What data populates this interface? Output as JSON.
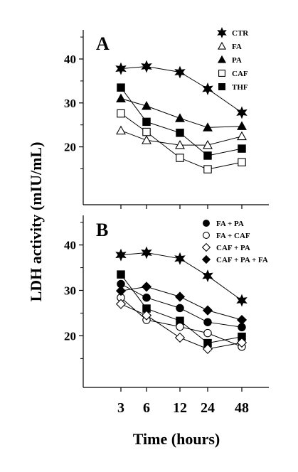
{
  "figure": {
    "ylabel": "LDH activity (mIU/mL)",
    "xlabel": "Time (hours)"
  },
  "chart_data": [
    {
      "type": "line",
      "panel_label": "A",
      "x": [
        3,
        6,
        12,
        24,
        48
      ],
      "x_tick_labels": [
        "3",
        "6",
        "12",
        "24",
        "48"
      ],
      "y_ticks": [
        20,
        30,
        40
      ],
      "ylim": [
        10,
        45
      ],
      "legend_position": "top-right",
      "series": [
        {
          "name": "CTR",
          "marker": "star-filled",
          "values": [
            37.8,
            38.3,
            37.0,
            33.2,
            27.8
          ]
        },
        {
          "name": "FA",
          "marker": "triangle-open",
          "values": [
            23.7,
            21.5,
            20.4,
            20.4,
            22.4
          ]
        },
        {
          "name": "PA",
          "marker": "triangle-filled",
          "values": [
            31.0,
            29.3,
            26.5,
            24.4,
            24.7
          ]
        },
        {
          "name": "CAF",
          "marker": "square-open",
          "values": [
            27.6,
            23.4,
            17.5,
            14.9,
            16.5
          ]
        },
        {
          "name": "THF",
          "marker": "square-filled",
          "values": [
            33.5,
            25.7,
            23.2,
            18.0,
            19.6
          ]
        }
      ]
    },
    {
      "type": "line",
      "panel_label": "B",
      "x": [
        3,
        6,
        12,
        24,
        48
      ],
      "x_tick_labels": [
        "3",
        "6",
        "12",
        "24",
        "48"
      ],
      "y_ticks": [
        20,
        30,
        40
      ],
      "ylim": [
        10,
        45
      ],
      "legend_position": "top-right",
      "series": [
        {
          "name": "CTR",
          "legend": false,
          "marker": "star-filled",
          "values": [
            37.8,
            38.3,
            37.0,
            33.2,
            27.8
          ]
        },
        {
          "name": "THF",
          "legend": false,
          "marker": "square-filled",
          "values": [
            33.5,
            26.0,
            23.3,
            18.4,
            19.8
          ]
        },
        {
          "name": "FA + PA",
          "marker": "circle-filled",
          "values": [
            31.4,
            28.4,
            26.1,
            23.0,
            21.9
          ]
        },
        {
          "name": "FA + CAF",
          "marker": "circle-open",
          "values": [
            28.4,
            23.5,
            22.0,
            20.6,
            17.6
          ]
        },
        {
          "name": "CAF + PA",
          "marker": "diamond-open",
          "values": [
            27.0,
            24.5,
            19.6,
            17.1,
            18.5
          ]
        },
        {
          "name": "CAF + PA + FA",
          "marker": "diamond-filled",
          "values": [
            29.9,
            30.8,
            28.6,
            25.6,
            23.5
          ]
        }
      ]
    }
  ]
}
